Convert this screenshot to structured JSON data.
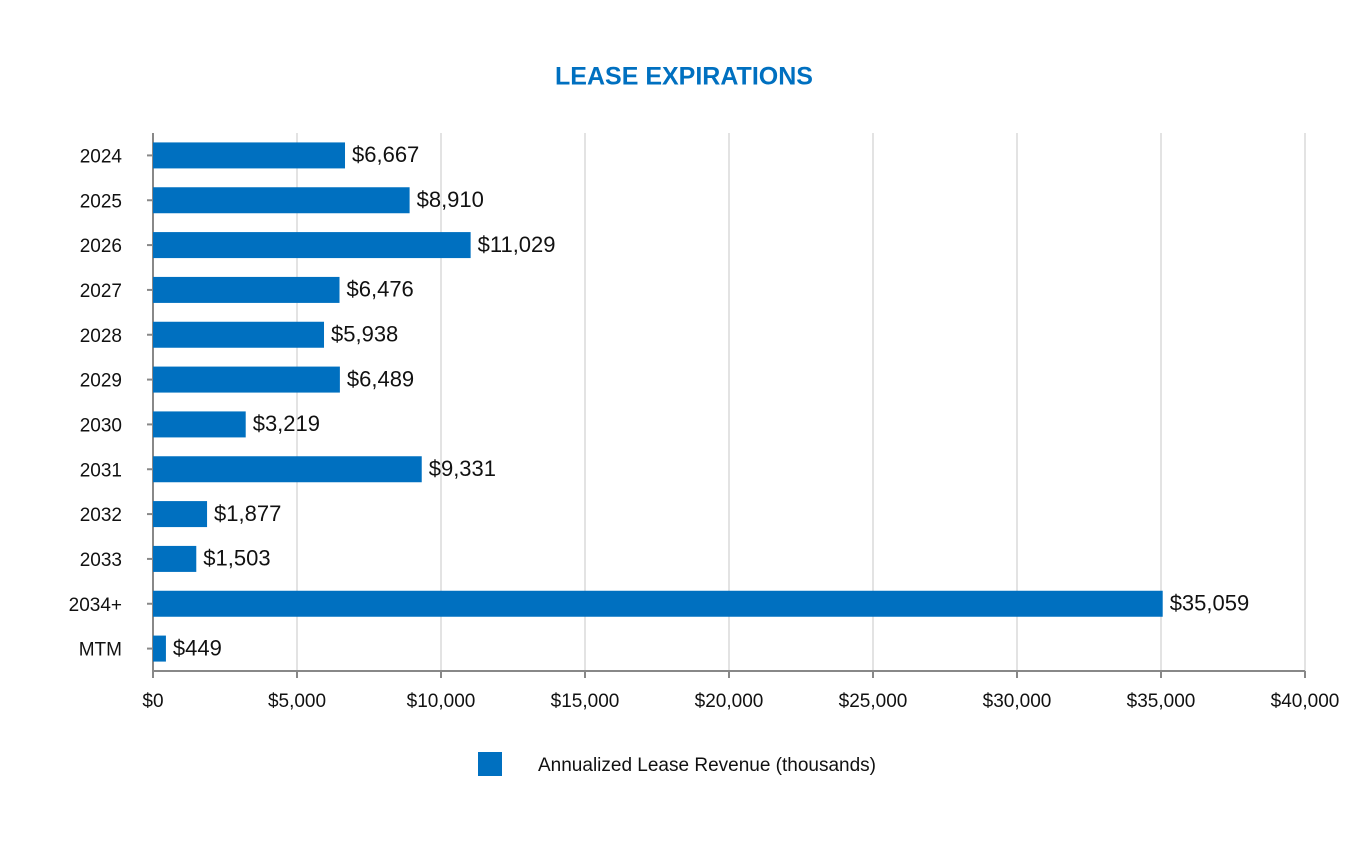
{
  "chart_data": {
    "type": "bar",
    "orientation": "horizontal",
    "title": "LEASE EXPIRATIONS",
    "categories": [
      "2024",
      "2025",
      "2026",
      "2027",
      "2028",
      "2029",
      "2030",
      "2031",
      "2032",
      "2033",
      "2034+",
      "MTM"
    ],
    "series": [
      {
        "name": "Annualized Lease Revenue (thousands)",
        "color": "#0070c0",
        "values": [
          6667,
          8910,
          11029,
          6476,
          5938,
          6489,
          3219,
          9331,
          1877,
          1503,
          35059,
          449
        ],
        "value_labels": [
          "$6,667",
          "$8,910",
          "$11,029",
          "$6,476",
          "$5,938",
          "$6,489",
          "$3,219",
          "$9,331",
          "$1,877",
          "$1,503",
          "$35,059",
          "$449"
        ]
      }
    ],
    "xlim": [
      0,
      40000
    ],
    "xticks": [
      {
        "value": 0,
        "label": "$0"
      },
      {
        "value": 5000,
        "label": "$5,000"
      },
      {
        "value": 10000,
        "label": "$10,000"
      },
      {
        "value": 15000,
        "label": "$15,000"
      },
      {
        "value": 20000,
        "label": "$20,000"
      },
      {
        "value": 25000,
        "label": "$25,000"
      },
      {
        "value": 30000,
        "label": "$30,000"
      },
      {
        "value": 35000,
        "label": "$35,000"
      },
      {
        "value": 40000,
        "label": "$40,000"
      }
    ],
    "grid": true,
    "legend": "bottom"
  }
}
